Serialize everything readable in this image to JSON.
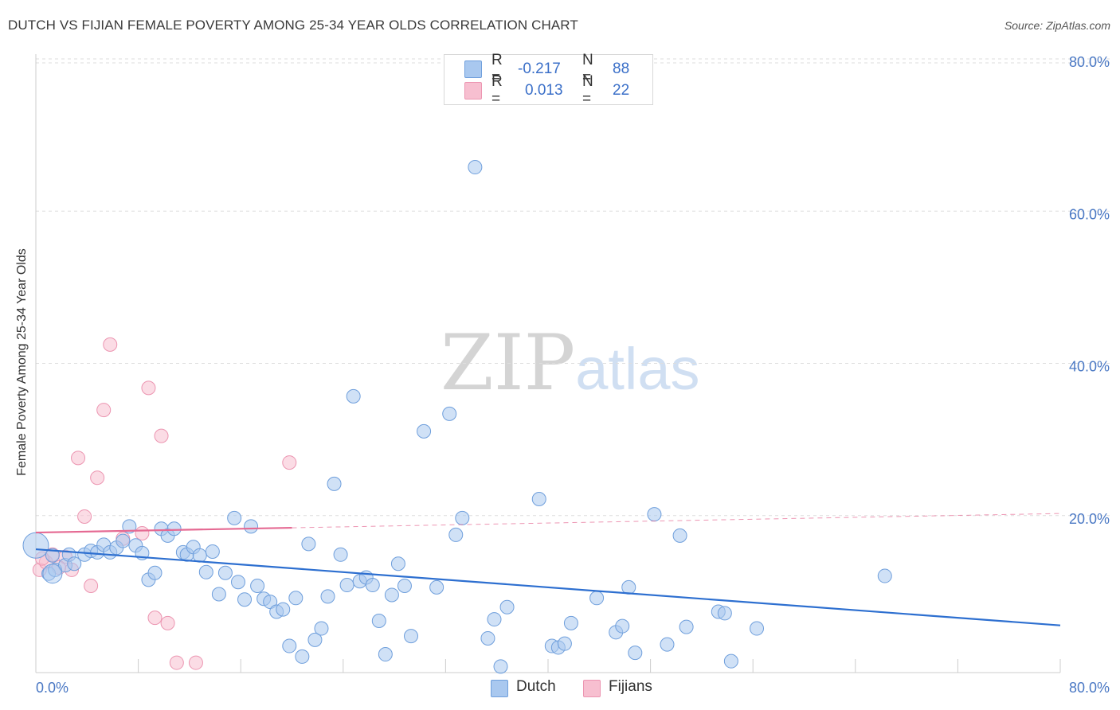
{
  "title": "DUTCH VS FIJIAN FEMALE POVERTY AMONG 25-34 YEAR OLDS CORRELATION CHART",
  "source": "Source: ZipAtlas.com",
  "watermark": {
    "zip": "ZIP",
    "atlas": "atlas"
  },
  "legend": {
    "dutch": {
      "r_label": "R =",
      "r_value": "-0.217",
      "n_label": "N =",
      "n_value": "88"
    },
    "fijian": {
      "r_label": "R =",
      "r_value": "0.013",
      "n_label": "N =",
      "n_value": "22"
    }
  },
  "bottom_legend": {
    "dutch": "Dutch",
    "fijian": "Fijians"
  },
  "colors": {
    "dutch_fill": "#a9c8ef",
    "dutch_stroke": "#6f9fdc",
    "dutch_line": "#2d6fd0",
    "fijian_fill": "#f7bfd0",
    "fijian_stroke": "#ec95b1",
    "fijian_line": "#e56a93",
    "grid": "#dedede",
    "axis": "#cccccc"
  },
  "chart_data": {
    "type": "scatter",
    "title": "DUTCH VS FIJIAN FEMALE POVERTY AMONG 25-34 YEAR OLDS CORRELATION CHART",
    "xlabel": "",
    "ylabel": "Female Poverty Among 25-34 Year Olds",
    "xlim": [
      0,
      80
    ],
    "ylim": [
      0,
      80
    ],
    "x_tick_labels": [
      "0.0%",
      "80.0%"
    ],
    "y_ticks": [
      20,
      40,
      60,
      80
    ],
    "y_tick_labels": [
      "20.0%",
      "40.0%",
      "60.0%",
      "80.0%"
    ],
    "series": [
      {
        "name": "Dutch",
        "r": -0.217,
        "n": 88,
        "trend": {
          "x0": 0,
          "y0": 16.2,
          "x1": 80,
          "y1": 6.2
        },
        "points": [
          [
            0.0,
            16.7
          ],
          [
            1.0,
            13.0
          ],
          [
            1.5,
            13.5
          ],
          [
            2.3,
            14.1
          ],
          [
            3.8,
            15.5
          ],
          [
            4.3,
            16.0
          ],
          [
            4.8,
            15.8
          ],
          [
            5.3,
            16.8
          ],
          [
            5.8,
            15.8
          ],
          [
            6.3,
            16.4
          ],
          [
            6.8,
            17.3
          ],
          [
            7.3,
            19.2
          ],
          [
            7.8,
            16.7
          ],
          [
            8.3,
            15.7
          ],
          [
            8.8,
            12.2
          ],
          [
            9.3,
            13.1
          ],
          [
            9.8,
            18.9
          ],
          [
            10.3,
            18.0
          ],
          [
            10.8,
            18.9
          ],
          [
            11.5,
            15.8
          ],
          [
            11.8,
            15.5
          ],
          [
            12.3,
            16.5
          ],
          [
            12.8,
            15.4
          ],
          [
            13.3,
            13.2
          ],
          [
            13.8,
            15.9
          ],
          [
            14.3,
            10.3
          ],
          [
            14.8,
            13.1
          ],
          [
            15.5,
            20.3
          ],
          [
            15.8,
            11.9
          ],
          [
            16.3,
            9.6
          ],
          [
            16.8,
            19.2
          ],
          [
            17.3,
            11.4
          ],
          [
            17.8,
            9.7
          ],
          [
            18.3,
            9.3
          ],
          [
            18.8,
            8.0
          ],
          [
            19.3,
            8.3
          ],
          [
            19.8,
            3.5
          ],
          [
            20.3,
            9.8
          ],
          [
            20.8,
            2.1
          ],
          [
            21.3,
            16.9
          ],
          [
            21.8,
            4.3
          ],
          [
            22.3,
            5.8
          ],
          [
            22.8,
            10.0
          ],
          [
            23.3,
            24.8
          ],
          [
            23.8,
            15.5
          ],
          [
            24.3,
            11.5
          ],
          [
            24.8,
            36.3
          ],
          [
            25.3,
            12.0
          ],
          [
            25.8,
            12.5
          ],
          [
            26.3,
            11.5
          ],
          [
            26.8,
            6.8
          ],
          [
            27.3,
            2.4
          ],
          [
            27.8,
            10.2
          ],
          [
            28.3,
            14.3
          ],
          [
            28.8,
            11.4
          ],
          [
            29.3,
            4.8
          ],
          [
            30.3,
            31.7
          ],
          [
            31.3,
            11.2
          ],
          [
            32.3,
            34.0
          ],
          [
            32.8,
            18.1
          ],
          [
            33.3,
            20.3
          ],
          [
            35.3,
            4.5
          ],
          [
            35.8,
            7.0
          ],
          [
            36.3,
            0.8
          ],
          [
            36.8,
            8.6
          ],
          [
            39.3,
            22.8
          ],
          [
            40.3,
            3.5
          ],
          [
            40.8,
            3.3
          ],
          [
            41.3,
            3.8
          ],
          [
            41.8,
            6.5
          ],
          [
            43.8,
            9.8
          ],
          [
            45.3,
            5.3
          ],
          [
            45.8,
            6.1
          ],
          [
            46.3,
            11.2
          ],
          [
            46.8,
            2.6
          ],
          [
            48.3,
            20.8
          ],
          [
            49.3,
            3.7
          ],
          [
            50.3,
            18.0
          ],
          [
            50.8,
            6.0
          ],
          [
            53.3,
            8.0
          ],
          [
            53.8,
            7.8
          ],
          [
            54.3,
            1.5
          ],
          [
            56.3,
            5.8
          ],
          [
            66.3,
            12.7
          ],
          [
            34.3,
            66.4
          ],
          [
            1.3,
            15.4
          ],
          [
            2.6,
            15.5
          ],
          [
            3.0,
            14.3
          ]
        ]
      },
      {
        "name": "Fijians",
        "r": 0.013,
        "n": 22,
        "trend": {
          "x0": 0,
          "y0": 18.4,
          "x1": 80,
          "y1": 20.9,
          "solid_until": 20
        },
        "points": [
          [
            0.3,
            13.5
          ],
          [
            0.8,
            14.5
          ],
          [
            1.3,
            15.5
          ],
          [
            2.3,
            15.2
          ],
          [
            2.8,
            13.5
          ],
          [
            3.3,
            28.2
          ],
          [
            3.8,
            20.5
          ],
          [
            4.3,
            11.4
          ],
          [
            4.8,
            25.6
          ],
          [
            5.3,
            34.5
          ],
          [
            5.8,
            43.1
          ],
          [
            6.8,
            17.6
          ],
          [
            8.3,
            18.3
          ],
          [
            8.8,
            37.4
          ],
          [
            9.3,
            7.2
          ],
          [
            9.8,
            31.1
          ],
          [
            10.3,
            6.5
          ],
          [
            11.0,
            1.3
          ],
          [
            12.5,
            1.3
          ],
          [
            19.8,
            27.6
          ],
          [
            1.8,
            13.8
          ],
          [
            0.5,
            15.0
          ]
        ]
      }
    ]
  }
}
